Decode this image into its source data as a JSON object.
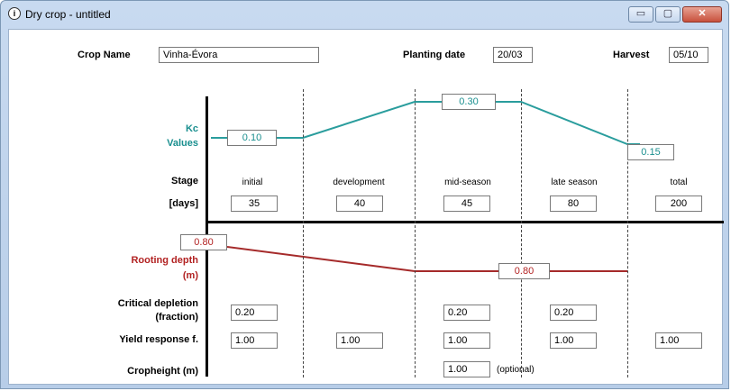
{
  "window": {
    "title": "Dry crop - untitled",
    "icon": "info-circle-icon",
    "min_label": "▭",
    "max_label": "▢",
    "close_label": "✕"
  },
  "header": {
    "crop_name_label": "Crop Name",
    "crop_name_value": "Vinha-Évora",
    "planting_label": "Planting date",
    "planting_value": "20/03",
    "harvest_label": "Harvest",
    "harvest_value": "05/10"
  },
  "labels": {
    "kc": "Kc",
    "values": "Values",
    "stage": "Stage",
    "days": "[days]",
    "rooting": "Rooting depth",
    "m": "(m)",
    "critical": "Critical depletion",
    "fraction": "(fraction)",
    "yield": "Yield response f.",
    "cropheight": "Cropheight (m)",
    "optional": "(optional)"
  },
  "kc": {
    "initial": "0.10",
    "mid": "0.30",
    "end": "0.15"
  },
  "stages": [
    {
      "name": "initial",
      "days": "35"
    },
    {
      "name": "development",
      "days": "40"
    },
    {
      "name": "mid-season",
      "days": "45"
    },
    {
      "name": "late season",
      "days": "80"
    },
    {
      "name": "total",
      "days": "200"
    }
  ],
  "rooting": {
    "initial": "0.80",
    "max": "0.80"
  },
  "critical_depletion": {
    "initial": "0.20",
    "mid": "0.20",
    "late": "0.20"
  },
  "yield_response": {
    "initial": "1.00",
    "development": "1.00",
    "mid": "1.00",
    "late": "1.00",
    "total": "1.00"
  },
  "cropheight": {
    "value": "1.00"
  },
  "colors": {
    "kc_line": "#2a9d9d",
    "root_line": "#a52a2a"
  }
}
